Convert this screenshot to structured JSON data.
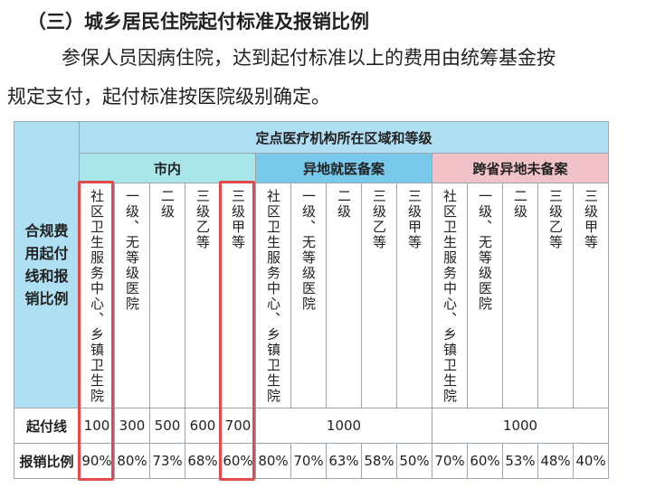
{
  "heading": "（三）城乡居民住院起付标准及报销比例",
  "paragraph_line1": "参保人员因病住院，达到起付标准以上的费用由统筹基金按",
  "paragraph_line2": "规定支付，起付标准按医院级别确定。",
  "table": {
    "side_header": "合规费\n用起付\n线和报\n销比例",
    "top_header": "定点医疗机构所在区域和等级",
    "regions": [
      "市内",
      "异地就医备案",
      "跨省异地未备案"
    ],
    "region_colors": [
      "#a9e6e9",
      "#79c9ea",
      "#f1c3c9"
    ],
    "levels": {
      "shinei": [
        "社区卫生服务中心、乡镇卫生院",
        "一级、无等级医院",
        "二级",
        "三级乙等",
        "三级甲等"
      ],
      "yidi": [
        "社区卫生服务中心、乡镇卫生院",
        "一级、无等级医院",
        "二级",
        "三级乙等",
        "三级甲等"
      ],
      "kuasheng": [
        "社区卫生服务中心、乡镇卫生院",
        "一级、无等级医院",
        "二级",
        "三级乙等",
        "三级甲等"
      ]
    },
    "row_qifu_label": "起付线",
    "row_qifu_shinei": [
      "100",
      "300",
      "500",
      "600",
      "700"
    ],
    "row_qifu_yidi": "1000",
    "row_qifu_kuasheng": "1000",
    "row_baoxiao_label": "报销比例",
    "row_baoxiao": [
      "90%",
      "80%",
      "73%",
      "68%",
      "60%",
      "80%",
      "70%",
      "63%",
      "58%",
      "50%",
      "70%",
      "60%",
      "53%",
      "48%",
      "40%"
    ],
    "highlight_color": "#e34a4a"
  }
}
